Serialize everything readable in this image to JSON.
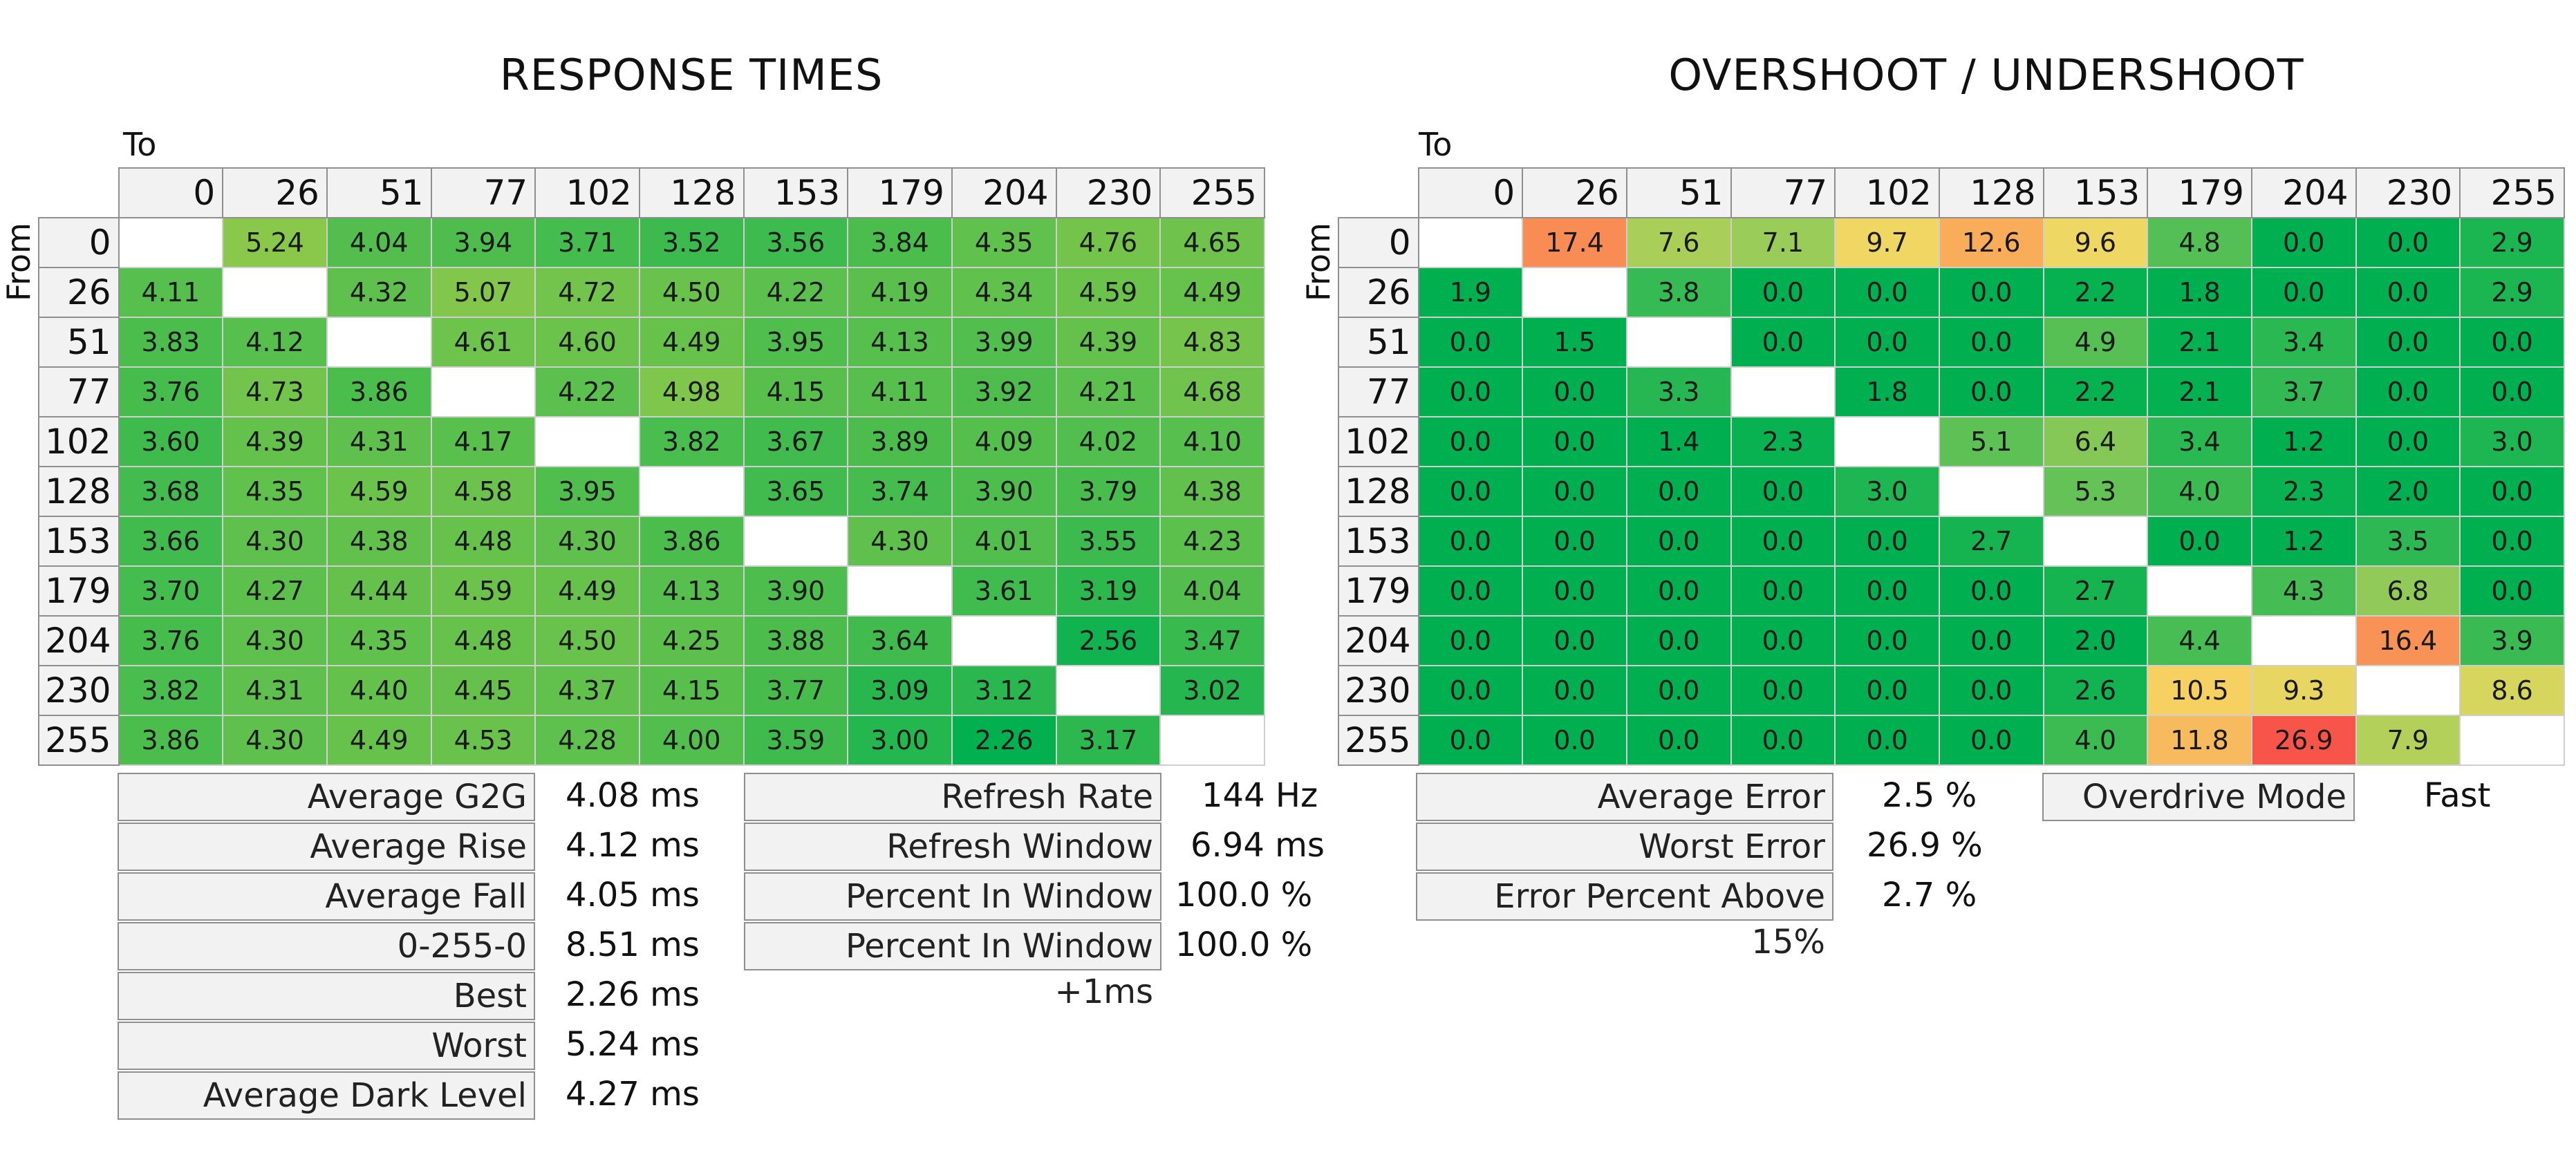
{
  "response_times": {
    "title": "RESPONSE TIMES",
    "to_label": "To",
    "from_label": "From",
    "stats_left": [
      {
        "label": "Average G2G",
        "value": "4.08 ms"
      },
      {
        "label": "Average Rise",
        "value": "4.12 ms"
      },
      {
        "label": "Average Fall",
        "value": "4.05 ms"
      },
      {
        "label": "0-255-0",
        "value": "8.51 ms"
      },
      {
        "label": "Best",
        "value": "2.26 ms"
      },
      {
        "label": "Worst",
        "value": "5.24 ms"
      },
      {
        "label": "Average Dark Level",
        "value": "4.27 ms"
      }
    ],
    "stats_right": [
      {
        "label": "Refresh Rate",
        "value": "144 Hz"
      },
      {
        "label": "Refresh Window",
        "value": "6.94 ms"
      },
      {
        "label": "Percent In Window",
        "value": "100.0 %"
      },
      {
        "label": "Percent In Window +1ms",
        "value": "100.0 %"
      }
    ]
  },
  "overshoot": {
    "title": "OVERSHOOT / UNDERSHOOT",
    "to_label": "To",
    "from_label": "From",
    "stats_left": [
      {
        "label": "Average Error",
        "value": "2.5 %"
      },
      {
        "label": "Worst Error",
        "value": "26.9 %"
      },
      {
        "label": "Error Percent Above 15%",
        "value": "2.7 %"
      }
    ],
    "stats_right": [
      {
        "label": "Overdrive Mode",
        "value": "Fast"
      }
    ]
  },
  "colors": {
    "green_dark": "#00b050",
    "green_light": "#8cc84b",
    "yellow": "#f7d864",
    "orange": "#f9a65a",
    "red": "#f8544a"
  },
  "chart_data": [
    {
      "type": "heatmap",
      "title": "RESPONSE TIMES",
      "xlabel": "To",
      "ylabel": "From",
      "levels": [
        0,
        26,
        51,
        77,
        102,
        128,
        153,
        179,
        204,
        230,
        255
      ],
      "values": [
        [
          null,
          5.24,
          4.04,
          3.94,
          3.71,
          3.52,
          3.56,
          3.84,
          4.35,
          4.76,
          4.65
        ],
        [
          4.11,
          null,
          4.32,
          5.07,
          4.72,
          4.5,
          4.22,
          4.19,
          4.34,
          4.59,
          4.49
        ],
        [
          3.83,
          4.12,
          null,
          4.61,
          4.6,
          4.49,
          3.95,
          4.13,
          3.99,
          4.39,
          4.83
        ],
        [
          3.76,
          4.73,
          3.86,
          null,
          4.22,
          4.98,
          4.15,
          4.11,
          3.92,
          4.21,
          4.68
        ],
        [
          3.6,
          4.39,
          4.31,
          4.17,
          null,
          3.82,
          3.67,
          3.89,
          4.09,
          4.02,
          4.1
        ],
        [
          3.68,
          4.35,
          4.59,
          4.58,
          3.95,
          null,
          3.65,
          3.74,
          3.9,
          3.79,
          4.38
        ],
        [
          3.66,
          4.3,
          4.38,
          4.48,
          4.3,
          3.86,
          null,
          4.3,
          4.01,
          3.55,
          4.23
        ],
        [
          3.7,
          4.27,
          4.44,
          4.59,
          4.49,
          4.13,
          3.9,
          null,
          3.61,
          3.19,
          4.04
        ],
        [
          3.76,
          4.3,
          4.35,
          4.48,
          4.5,
          4.25,
          3.88,
          3.64,
          null,
          2.56,
          3.47
        ],
        [
          3.82,
          4.31,
          4.4,
          4.45,
          4.37,
          4.15,
          3.77,
          3.09,
          3.12,
          null,
          3.02
        ],
        [
          3.86,
          4.3,
          4.49,
          4.53,
          4.28,
          4.0,
          3.59,
          3.0,
          2.26,
          3.17,
          null
        ]
      ]
    },
    {
      "type": "heatmap",
      "title": "OVERSHOOT / UNDERSHOOT",
      "xlabel": "To",
      "ylabel": "From",
      "levels": [
        0,
        26,
        51,
        77,
        102,
        128,
        153,
        179,
        204,
        230,
        255
      ],
      "values": [
        [
          null,
          17.4,
          7.6,
          7.1,
          9.7,
          12.6,
          9.6,
          4.8,
          0.0,
          0.0,
          2.9
        ],
        [
          1.9,
          null,
          3.8,
          0.0,
          0.0,
          0.0,
          2.2,
          1.8,
          0.0,
          0.0,
          2.9
        ],
        [
          0.0,
          1.5,
          null,
          0.0,
          0.0,
          0.0,
          4.9,
          2.1,
          3.4,
          0.0,
          0.0
        ],
        [
          0.0,
          0.0,
          3.3,
          null,
          1.8,
          0.0,
          2.2,
          2.1,
          3.7,
          0.0,
          0.0
        ],
        [
          0.0,
          0.0,
          1.4,
          2.3,
          null,
          5.1,
          6.4,
          3.4,
          1.2,
          0.0,
          3.0
        ],
        [
          0.0,
          0.0,
          0.0,
          0.0,
          3.0,
          null,
          5.3,
          4.0,
          2.3,
          2.0,
          0.0
        ],
        [
          0.0,
          0.0,
          0.0,
          0.0,
          0.0,
          2.7,
          null,
          0.0,
          1.2,
          3.5,
          0.0
        ],
        [
          0.0,
          0.0,
          0.0,
          0.0,
          0.0,
          0.0,
          2.7,
          null,
          4.3,
          6.8,
          0.0
        ],
        [
          0.0,
          0.0,
          0.0,
          0.0,
          0.0,
          0.0,
          2.0,
          4.4,
          null,
          16.4,
          3.9
        ],
        [
          0.0,
          0.0,
          0.0,
          0.0,
          0.0,
          0.0,
          2.6,
          10.5,
          9.3,
          null,
          8.6
        ],
        [
          0.0,
          0.0,
          0.0,
          0.0,
          0.0,
          0.0,
          4.0,
          11.8,
          26.9,
          7.9,
          null
        ]
      ]
    }
  ]
}
